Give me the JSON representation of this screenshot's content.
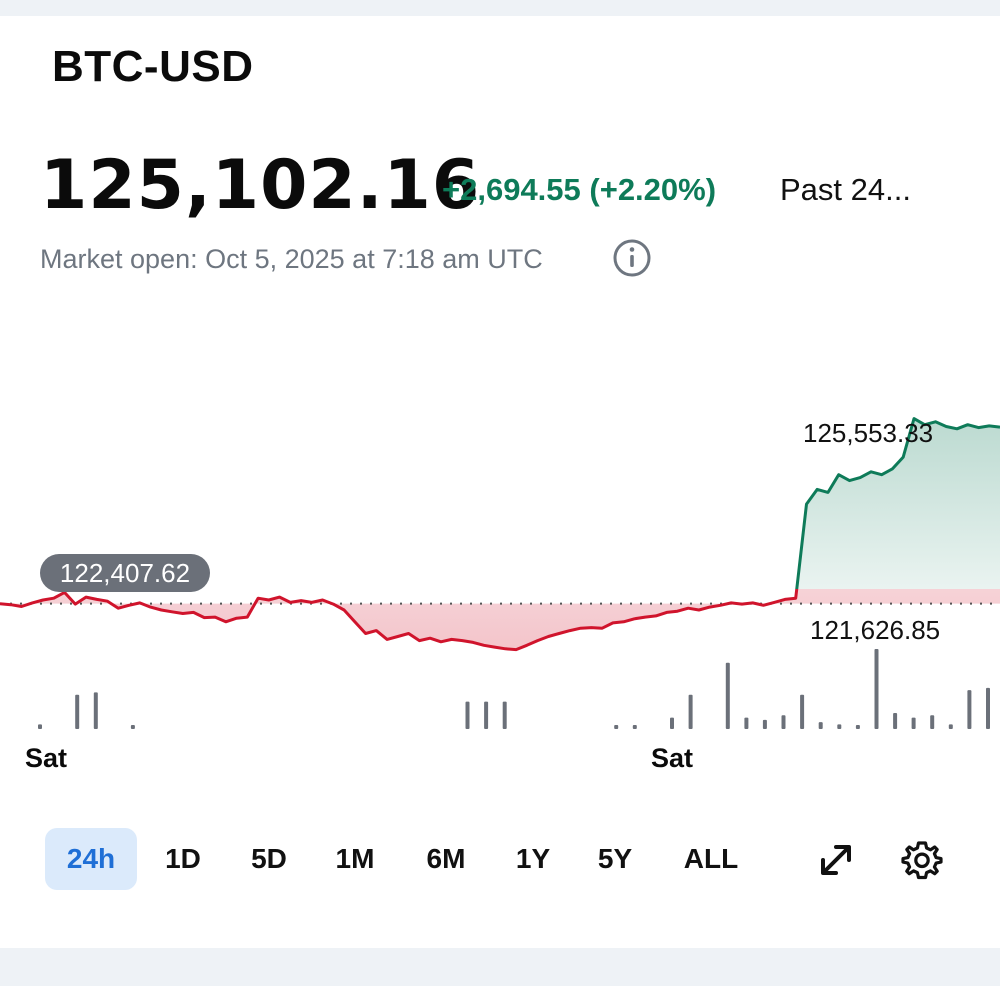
{
  "header": {
    "symbol": "BTC-USD",
    "price": "125,102.16",
    "change": "+2,694.55 (+2.20%)",
    "period": "Past 24...",
    "market_status": "Market open: Oct 5, 2025 at 7:18 am UTC",
    "info_icon": "info-icon"
  },
  "colors": {
    "up": "#0e7b59",
    "down": "#d0142c",
    "volume": "#6b7079",
    "active_range_bg": "#dbeafb",
    "active_range_text": "#1f6fd6"
  },
  "chart": {
    "previous_close_label": "122,407.62",
    "high_label": "125,553.33",
    "low_label": "121,626.85",
    "x_labels": [
      "Sat",
      "Sat"
    ]
  },
  "chart_data": {
    "type": "line",
    "baseline": 122407.62,
    "high": 125553.33,
    "low": 121626.85,
    "ylim": [
      121450,
      125700
    ],
    "x_ticks": [
      "Sat",
      "Sat"
    ],
    "series": [
      {
        "values": [
          122407,
          122390,
          122360,
          122420,
          122470,
          122500,
          122600,
          122400,
          122520,
          122480,
          122450,
          122330,
          122380,
          122420,
          122350,
          122300,
          122270,
          122240,
          122260,
          122170,
          122180,
          122100,
          122160,
          122180,
          122500,
          122470,
          122520,
          122430,
          122460,
          122430,
          122470,
          122400,
          122300,
          122100,
          121900,
          121950,
          121800,
          121850,
          121900,
          121780,
          121820,
          121760,
          121800,
          121780,
          121750,
          121700,
          121670,
          121640,
          121627,
          121700,
          121780,
          121850,
          121900,
          121950,
          121990,
          122000,
          121990,
          122080,
          122100,
          122150,
          122180,
          122200,
          122260,
          122280,
          122330,
          122300,
          122350,
          122380,
          122420,
          122400,
          122420,
          122380,
          122430,
          122480,
          122500,
          124100,
          124350,
          124300,
          124600,
          124500,
          124550,
          124650,
          124600,
          124700,
          124900,
          125553,
          125450,
          125500,
          125420,
          125380,
          125450,
          125400,
          125430,
          125410
        ]
      }
    ],
    "volume": [
      4,
      0,
      30,
      32,
      0,
      3,
      0,
      0,
      0,
      0,
      0,
      0,
      0,
      0,
      0,
      0,
      0,
      0,
      0,
      0,
      0,
      0,
      0,
      24,
      24,
      24,
      0,
      0,
      0,
      0,
      0,
      2,
      2,
      0,
      10,
      30,
      0,
      58,
      10,
      8,
      12,
      30,
      6,
      4,
      2,
      70,
      14,
      10,
      12,
      4,
      34,
      36
    ]
  },
  "ranges": {
    "active": "24h",
    "items": [
      "24h",
      "1D",
      "5D",
      "1M",
      "6M",
      "1Y",
      "5Y",
      "ALL"
    ]
  },
  "tools": {
    "expand_icon": "expand-icon",
    "settings_icon": "gear-icon"
  }
}
